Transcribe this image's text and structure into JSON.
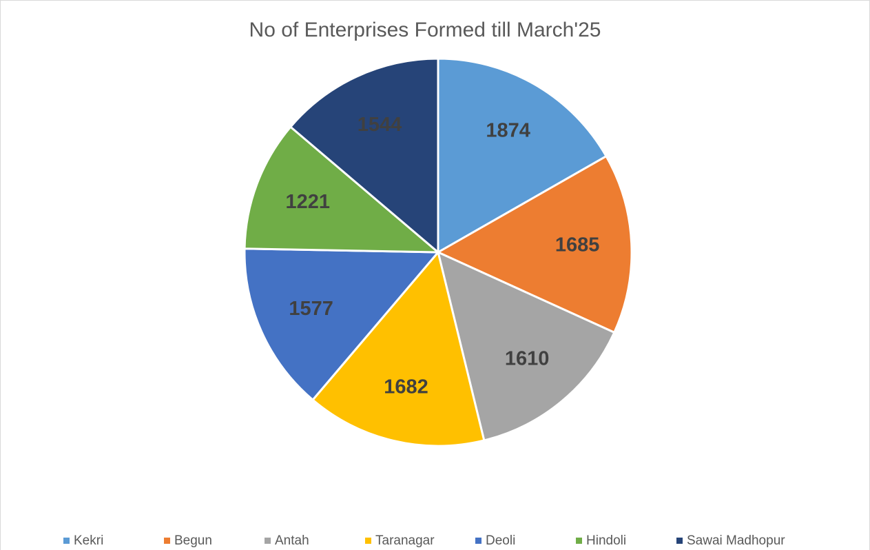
{
  "chart_data": {
    "type": "pie",
    "title": "No of Enterprises Formed till March'25",
    "categories": [
      "Kekri",
      "Begun",
      "Antah",
      "Taranagar",
      "Deoli",
      "Hindoli",
      "Sawai Madhopur"
    ],
    "values": [
      1874,
      1685,
      1610,
      1682,
      1577,
      1221,
      1544
    ],
    "colors": [
      "#5b9bd5",
      "#ed7d31",
      "#a5a5a5",
      "#ffc000",
      "#4472c4",
      "#70ad47",
      "#264478"
    ],
    "legend": "bottom"
  }
}
